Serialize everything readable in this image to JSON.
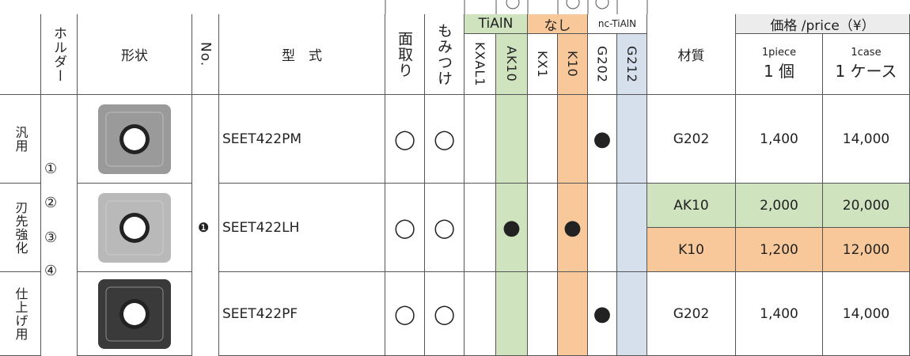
{
  "header": {
    "holder": "ホルダー",
    "shape": "形状",
    "no": "No.",
    "model": "型　式",
    "chamfer": "面取り",
    "counterbore": "もみつけ",
    "groups": [
      "TiAlN",
      "なし",
      "nc-TiAlN"
    ],
    "grades": [
      "KXAL1",
      "AK10",
      "KX1",
      "K10",
      "G202",
      "G212"
    ],
    "material": "材質",
    "price": "価格 /price（¥）",
    "piece_en": "1piece",
    "piece": "1 個",
    "case_en": "1case",
    "case": "1 ケース"
  },
  "holders": [
    "①",
    "②",
    "③",
    "④"
  ],
  "no": "❶",
  "rows": [
    {
      "category": "汎用",
      "model": "SEET422PM",
      "chamfer": "◯",
      "counterbore": "◯",
      "grades": [
        null,
        null,
        null,
        null,
        "●",
        null
      ],
      "prices": [
        {
          "material": "G202",
          "piece": "1,400",
          "case": "14,000"
        }
      ]
    },
    {
      "category": "刃先強化",
      "model": "SEET422LH",
      "chamfer": "◯",
      "counterbore": "◯",
      "grades": [
        null,
        "●",
        null,
        "●",
        null,
        null
      ],
      "prices": [
        {
          "material": "AK10",
          "piece": "2,000",
          "case": "20,000"
        },
        {
          "material": "K10",
          "piece": "1,200",
          "case": "12,000"
        }
      ]
    },
    {
      "category": "仕上げ用",
      "model": "SEET422PF",
      "chamfer": "◯",
      "counterbore": "◯",
      "grades": [
        null,
        null,
        null,
        null,
        "●",
        null
      ],
      "prices": [
        {
          "material": "G202",
          "piece": "1,400",
          "case": "14,000"
        }
      ]
    }
  ]
}
